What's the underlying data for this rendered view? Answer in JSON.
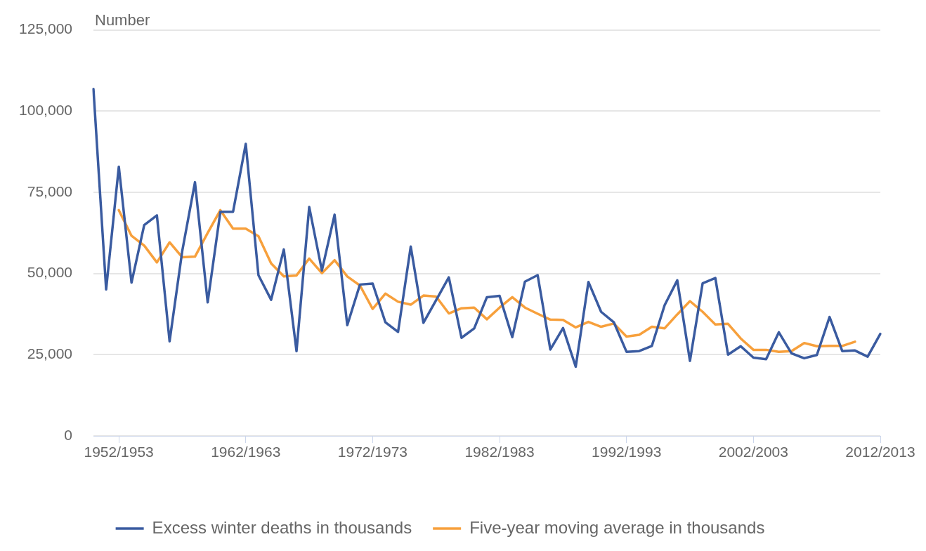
{
  "chart_data": {
    "type": "line",
    "ylabel": "Number",
    "categories": [
      null,
      null,
      "1952/1953",
      null,
      null,
      null,
      null,
      null,
      null,
      null,
      null,
      null,
      "1962/1963",
      null,
      null,
      null,
      null,
      null,
      null,
      null,
      null,
      null,
      "1972/1973",
      null,
      null,
      null,
      null,
      null,
      null,
      null,
      null,
      null,
      "1982/1983",
      null,
      null,
      null,
      null,
      null,
      null,
      null,
      null,
      null,
      "1992/1993",
      null,
      null,
      null,
      null,
      null,
      null,
      null,
      null,
      null,
      "2002/2003",
      null,
      null,
      null,
      null,
      null,
      null,
      null,
      null,
      null,
      "2012/2013"
    ],
    "series": [
      {
        "name": "Excess winter deaths in thousands",
        "color": "#3a5ba0",
        "values": [
          106800,
          45100,
          82900,
          47200,
          64900,
          67900,
          29100,
          57000,
          78100,
          41100,
          69000,
          69000,
          89900,
          49500,
          41900,
          57400,
          26100,
          70500,
          50900,
          68100,
          34100,
          46600,
          46900,
          35000,
          32000,
          58300,
          34800,
          41800,
          48800,
          30200,
          33100,
          42700,
          43100,
          30400,
          47500,
          49500,
          26600,
          33200,
          21300,
          47400,
          38200,
          35000,
          25900,
          26100,
          27700,
          40200,
          47900,
          23100,
          47000,
          48600,
          25000,
          27600,
          24100,
          23600,
          31900,
          25400,
          23900,
          24900,
          36600,
          26100,
          26300,
          24400,
          31400
        ]
      },
      {
        "name": "Five-year moving average in thousands",
        "color": "#f7a03c",
        "values": [
          null,
          null,
          69500,
          61600,
          58600,
          53400,
          59600,
          55000,
          55200,
          62500,
          69500,
          63800,
          63800,
          61500,
          53100,
          49100,
          49400,
          54600,
          50100,
          54100,
          49100,
          46300,
          39100,
          43800,
          41300,
          40400,
          43200,
          42900,
          37700,
          39300,
          39500,
          35900,
          39500,
          42700,
          39500,
          37600,
          35800,
          35700,
          33400,
          35100,
          33600,
          34600,
          30600,
          31100,
          33600,
          33100,
          37400,
          41500,
          38200,
          34300,
          34500,
          30000,
          26500,
          26500,
          25900,
          26100,
          28600,
          27600,
          27700,
          27700,
          29000,
          null,
          null
        ]
      }
    ],
    "ylim": [
      0,
      125000
    ],
    "yticks": [
      {
        "value": 0,
        "label": "0"
      },
      {
        "value": 25000,
        "label": "25,000"
      },
      {
        "value": 50000,
        "label": "50,000"
      },
      {
        "value": 75000,
        "label": "75,000"
      },
      {
        "value": 100000,
        "label": "100,000"
      },
      {
        "value": 125000,
        "label": "125,000"
      }
    ],
    "grid": "y",
    "legend": "bottom",
    "marker": "none",
    "line_style": "solid"
  }
}
